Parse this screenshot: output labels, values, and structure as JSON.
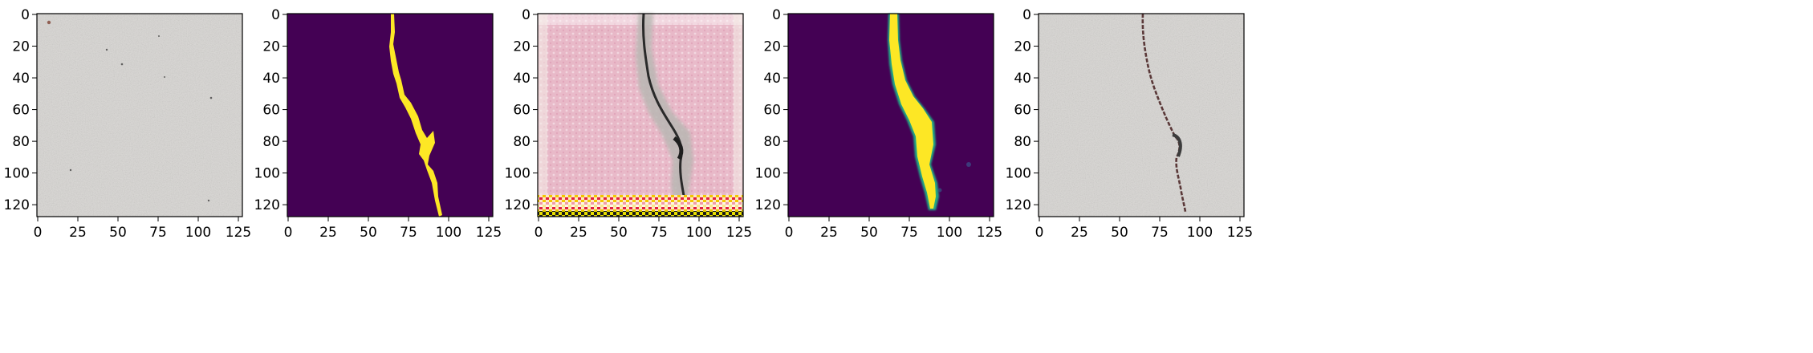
{
  "figure": {
    "panels": [
      {
        "id": "input-photo",
        "kind": "concrete-photo"
      },
      {
        "id": "ground-truth-mask",
        "kind": "binary-mask"
      },
      {
        "id": "generated-image",
        "kind": "synthesized-texture"
      },
      {
        "id": "predicted-mask",
        "kind": "soft-mask"
      },
      {
        "id": "overlay-photo",
        "kind": "crack-overlay"
      }
    ],
    "x_ticks": [
      "0",
      "25",
      "50",
      "75",
      "100",
      "125"
    ],
    "y_ticks": [
      "0",
      "20",
      "40",
      "60",
      "80",
      "100",
      "120"
    ],
    "colors": {
      "mask_background": "#440154",
      "mask_foreground": "#fde725",
      "concrete": "#c9c7c3",
      "pink_texture": "#e9b3c2"
    }
  }
}
